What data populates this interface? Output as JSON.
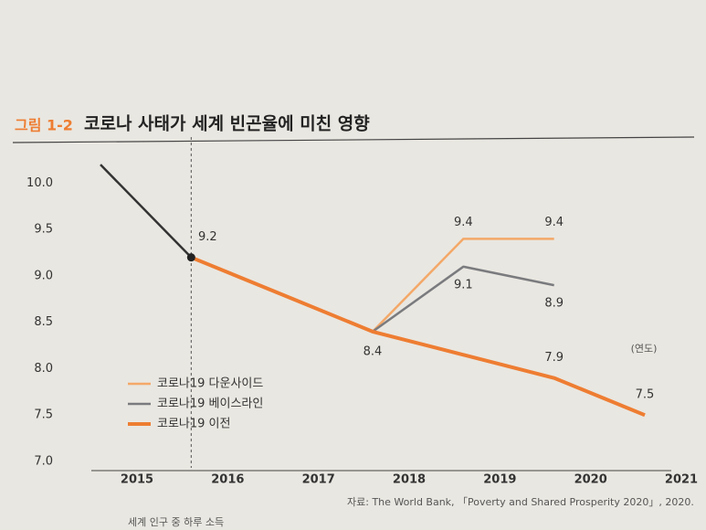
{
  "chart_data": {
    "type": "line",
    "figure_label": "그림 1-2",
    "title": "코로나 사태가 세계 빈곤율에 미친 영향",
    "x_unit": "(연도)",
    "source": "자료: The World Bank, 「Poverty and Shared Prosperity 2020」, 2020.",
    "footnote": "세계 인구 중 하루 소득",
    "categories": [
      "2015",
      "2016",
      "2017",
      "2018",
      "2019",
      "2020",
      "2021"
    ],
    "series": [
      {
        "color": "#333333",
        "values": [
          10.2,
          9.2,
          null,
          null,
          null,
          null,
          null
        ],
        "value_labels": [
          null,
          null,
          null,
          null,
          null,
          null,
          null
        ]
      },
      {
        "name": "코로나19 다운사이드",
        "color": "#f4a868",
        "values": [
          null,
          null,
          null,
          8.4,
          9.4,
          9.4,
          null
        ],
        "value_labels": [
          null,
          null,
          null,
          null,
          "9.4",
          "9.4",
          null
        ]
      },
      {
        "name": "코로나19 베이스라인",
        "color": "#7a7b7e",
        "values": [
          null,
          null,
          null,
          8.4,
          9.1,
          8.9,
          null
        ],
        "value_labels": [
          null,
          null,
          null,
          null,
          "9.1",
          "8.9",
          null
        ]
      },
      {
        "name": "코로나19 이전",
        "color": "#ee7d32",
        "values": [
          null,
          9.2,
          8.8,
          8.4,
          8.15,
          7.9,
          7.5
        ],
        "value_labels": [
          null,
          "9.2",
          null,
          "8.4",
          null,
          "7.9",
          "7.5"
        ]
      }
    ],
    "ylim": [
      7.0,
      10.3
    ],
    "yticks": [
      {
        "value": 7,
        "label": "7.0"
      },
      7.5,
      {
        "value": 8,
        "label": "8.0"
      },
      8.5,
      {
        "value": 9,
        "label": "9.0"
      },
      9.5,
      {
        "value": 10,
        "label": "10.0"
      }
    ],
    "marker_category": "2016",
    "legend": "lower-left"
  }
}
